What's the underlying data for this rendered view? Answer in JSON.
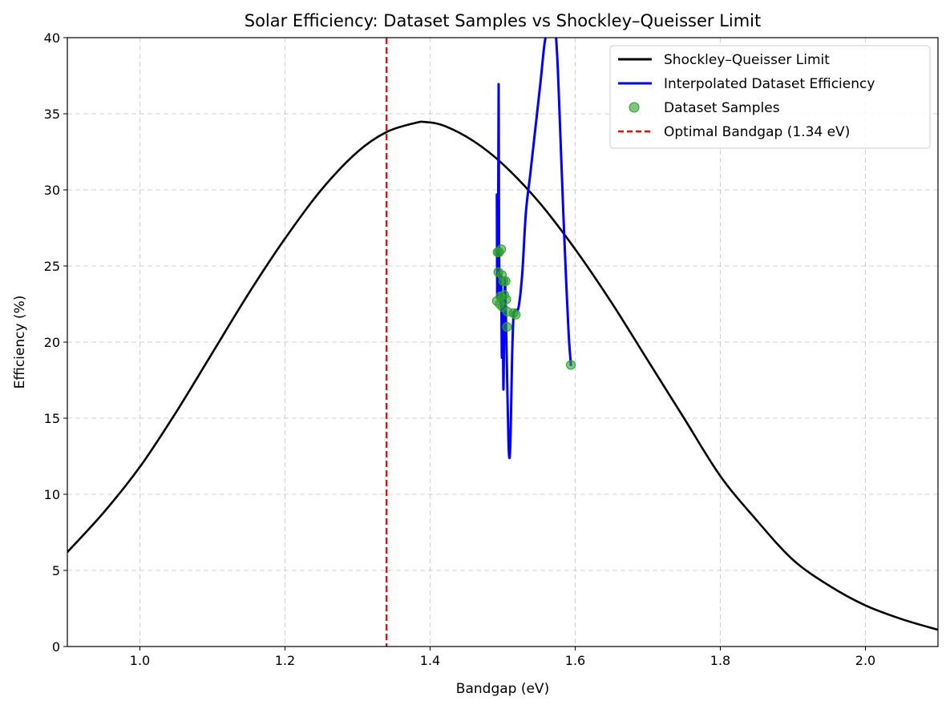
{
  "chart_data": {
    "type": "line",
    "title": "Solar Efficiency: Dataset Samples vs Shockley–Queisser Limit",
    "xlabel": "Bandgap (eV)",
    "ylabel": "Efficiency (%)",
    "xlim": [
      0.9,
      2.1
    ],
    "ylim": [
      0,
      40
    ],
    "xticks": [
      1.0,
      1.2,
      1.4,
      1.6,
      1.8,
      2.0
    ],
    "xtick_labels": [
      "1.0",
      "1.2",
      "1.4",
      "1.6",
      "1.8",
      "2.0"
    ],
    "yticks": [
      0,
      5,
      10,
      15,
      20,
      25,
      30,
      35,
      40
    ],
    "ytick_labels": [
      "0",
      "5",
      "10",
      "15",
      "20",
      "25",
      "30",
      "35",
      "40"
    ],
    "grid": true,
    "legend_position": "upper right",
    "series": [
      {
        "name": "Shockley–Queisser Limit",
        "kind": "line",
        "color": "#000000",
        "x": [
          0.9,
          0.95,
          1.0,
          1.05,
          1.1,
          1.15,
          1.2,
          1.25,
          1.3,
          1.34,
          1.38,
          1.395,
          1.42,
          1.46,
          1.5,
          1.55,
          1.6,
          1.65,
          1.7,
          1.75,
          1.8,
          1.85,
          1.9,
          1.95,
          2.0,
          2.05,
          2.1
        ],
        "y": [
          6.2,
          8.8,
          11.8,
          15.4,
          19.3,
          23.2,
          26.8,
          30.0,
          32.5,
          33.8,
          34.4,
          34.45,
          34.2,
          33.2,
          31.7,
          29.2,
          26.1,
          22.6,
          18.8,
          15.0,
          11.2,
          8.3,
          5.7,
          4.0,
          2.7,
          1.8,
          1.1
        ]
      },
      {
        "name": "Interpolated Dataset Efficiency",
        "kind": "line",
        "color": "#0000ff",
        "x": [
          1.492,
          1.4925,
          1.493,
          1.4935,
          1.494,
          1.4945,
          1.495,
          1.4955,
          1.496,
          1.497,
          1.498,
          1.4985,
          1.499,
          1.5,
          1.501,
          1.502,
          1.503,
          1.504,
          1.506,
          1.508,
          1.5095,
          1.511,
          1.513,
          1.515,
          1.518,
          1.522,
          1.527,
          1.532,
          1.538,
          1.545,
          1.552,
          1.558,
          1.564,
          1.568,
          1.572,
          1.576,
          1.58,
          1.584,
          1.588,
          1.591,
          1.594
        ],
        "y": [
          29.7,
          23.0,
          25.6,
          26.1,
          30.5,
          36.9,
          27.0,
          23.5,
          24.0,
          22.6,
          24.4,
          20.9,
          19.0,
          22.3,
          16.9,
          20.6,
          24.1,
          22.8,
          18.0,
          13.5,
          12.4,
          14.0,
          19.0,
          21.7,
          22.1,
          22.3,
          24.5,
          28.5,
          31.0,
          34.0,
          37.0,
          39.7,
          41.0,
          42.0,
          41.0,
          38.0,
          33.0,
          28.0,
          23.5,
          20.5,
          18.5
        ]
      },
      {
        "name": "Dataset Samples",
        "kind": "scatter",
        "color": "#2ca02c",
        "x": [
          1.492,
          1.493,
          1.494,
          1.495,
          1.496,
          1.497,
          1.498,
          1.499,
          1.5,
          1.501,
          1.502,
          1.504,
          1.505,
          1.506,
          1.5065,
          1.515,
          1.518,
          1.594
        ],
        "y": [
          22.7,
          25.9,
          24.6,
          25.9,
          22.5,
          23.0,
          26.1,
          24.4,
          22.3,
          24.0,
          23.1,
          24.0,
          22.8,
          21.0,
          22.0,
          21.9,
          21.8,
          18.5
        ]
      },
      {
        "name": "Optimal Bandgap (1.34 eV)",
        "kind": "vline",
        "color": "#ff0000",
        "x": 1.34
      }
    ]
  }
}
